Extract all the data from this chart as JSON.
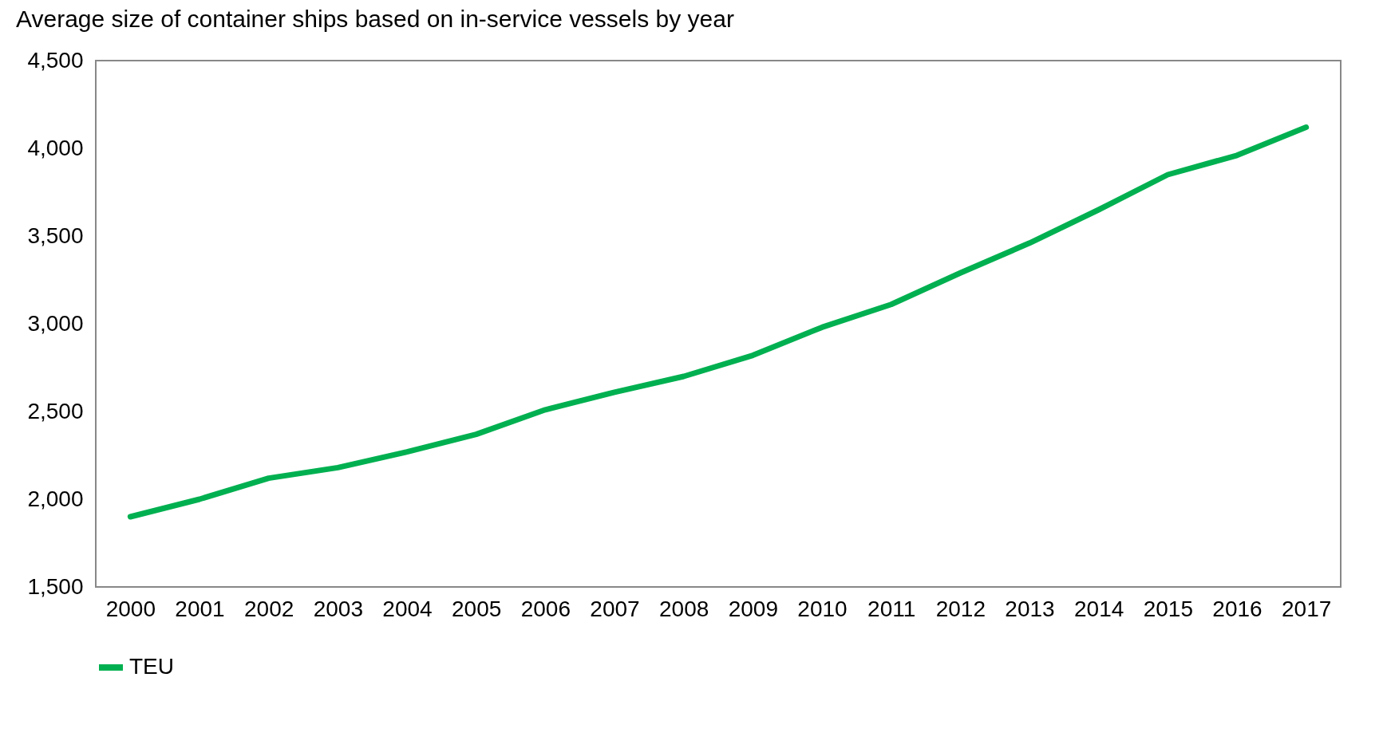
{
  "chart_data": {
    "type": "line",
    "title": "Average size of container ships based on in-service vessels by year",
    "categories": [
      "2000",
      "2001",
      "2002",
      "2003",
      "2004",
      "2005",
      "2006",
      "2007",
      "2008",
      "2009",
      "2010",
      "2011",
      "2012",
      "2013",
      "2014",
      "2015",
      "2016",
      "2017"
    ],
    "series": [
      {
        "name": "TEU",
        "color": "#00b050",
        "values": [
          1900,
          2000,
          2120,
          2180,
          2270,
          2370,
          2510,
          2610,
          2700,
          2820,
          2980,
          3110,
          3290,
          3460,
          3650,
          3850,
          3960,
          4120
        ]
      }
    ],
    "ylim": [
      1500,
      4500
    ],
    "yticks": [
      {
        "value": 1500,
        "label": "1,500"
      },
      {
        "value": 2000,
        "label": "2,000"
      },
      {
        "value": 2500,
        "label": "2,500"
      },
      {
        "value": 3000,
        "label": "3,000"
      },
      {
        "value": 3500,
        "label": "3,500"
      },
      {
        "value": 4000,
        "label": "4,000"
      },
      {
        "value": 4500,
        "label": "4,500"
      }
    ],
    "grid": false,
    "legend": "bottom",
    "line_style": "solid",
    "marker": "none"
  }
}
